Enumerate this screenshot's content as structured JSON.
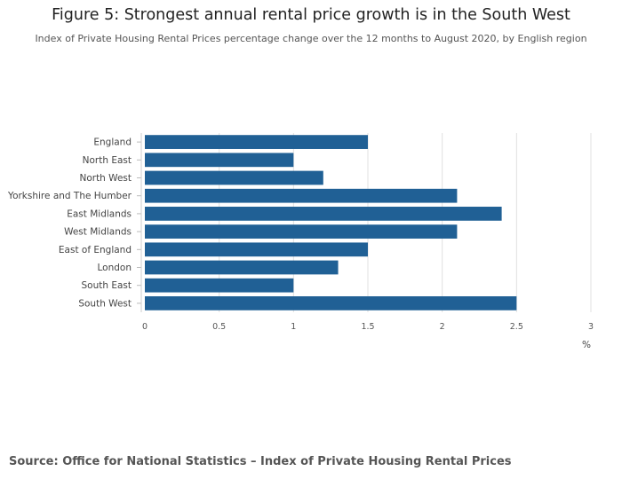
{
  "chart_data": {
    "type": "bar",
    "orientation": "horizontal",
    "title": "Figure 5: Strongest annual rental price growth is in the South West",
    "subtitle": "Index of Private Housing Rental Prices percentage change over the 12 months to August 2020, by English region",
    "categories": [
      "England",
      "North East",
      "North West",
      "Yorkshire and The Humber",
      "East Midlands",
      "West Midlands",
      "East of England",
      "London",
      "South East",
      "South West"
    ],
    "values": [
      1.5,
      1.0,
      1.2,
      2.1,
      2.4,
      2.1,
      1.5,
      1.3,
      1.0,
      2.5
    ],
    "xlim": [
      0,
      3
    ],
    "xticks": [
      "0",
      "0.5",
      "1",
      "1.5",
      "2",
      "2.5",
      "3"
    ],
    "xtick_values": [
      0,
      0.5,
      1,
      1.5,
      2,
      2.5,
      3
    ],
    "xlabel": "%",
    "ylabel": "",
    "grid": true,
    "bar_color": "#206095",
    "source": "Source: Office for National Statistics – Index of Private Housing Rental Prices"
  }
}
